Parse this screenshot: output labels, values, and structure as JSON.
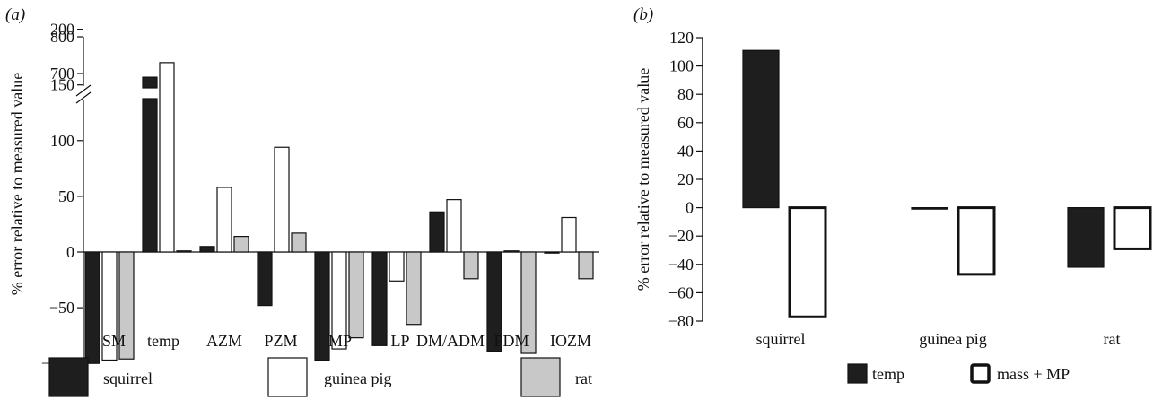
{
  "colors": {
    "squirrel": "#1e1e1e",
    "guinea_pig": "#ffffff",
    "rat": "#c8c8c8",
    "temp": "#1e1e1e",
    "mass_mp": "#ffffff"
  },
  "chart_data": [
    {
      "type": "bar",
      "panel_label": "(a)",
      "ylabel": "% error relative to measured value",
      "y_axis_break": [
        200,
        700
      ],
      "lower_yticks": [
        -100,
        -50,
        0,
        50,
        100,
        150,
        200
      ],
      "upper_yticks": [
        700,
        800
      ],
      "ylim": [
        -100,
        800
      ],
      "categories": [
        "SM",
        "temp",
        "AZM",
        "PZM",
        "MP",
        "LP",
        "DM/ADM",
        "PDM",
        "IOZM"
      ],
      "series": [
        {
          "name": "squirrel",
          "values": [
            -100,
            690,
            5,
            -48,
            -97,
            -84,
            36,
            -89,
            0
          ]
        },
        {
          "name": "guinea pig",
          "values": [
            -97,
            170,
            58,
            94,
            -87,
            -26,
            47,
            1,
            31
          ]
        },
        {
          "name": "rat",
          "values": [
            -96,
            1,
            14,
            17,
            -77,
            -65,
            -24,
            -91,
            -24
          ]
        }
      ],
      "legend": {
        "placement": "bottom"
      }
    },
    {
      "type": "bar",
      "panel_label": "(b)",
      "ylabel": "% error relative to measured value",
      "ylim": [
        -80,
        120
      ],
      "yticks": [
        -80,
        -60,
        -40,
        -20,
        0,
        20,
        40,
        60,
        80,
        100,
        120
      ],
      "categories": [
        "squirrel",
        "guinea pig",
        "rat"
      ],
      "series": [
        {
          "name": "temp",
          "values": [
            111,
            -1,
            -42
          ]
        },
        {
          "name": "mass + MP",
          "values": [
            -77,
            -47,
            -29
          ]
        }
      ],
      "legend": {
        "placement": "bottom"
      }
    }
  ]
}
